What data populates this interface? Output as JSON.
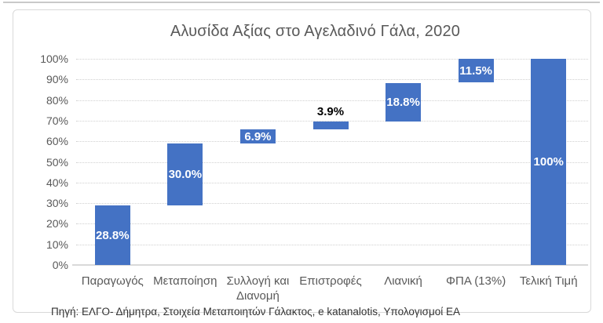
{
  "chart_data": {
    "type": "bar",
    "subtype": "waterfall",
    "title": "Αλυσίδα Αξίας στο Αγελαδινό Γάλα, 2020",
    "source_note": "Πηγή: ΕΛΓΟ- Δήμητρα, Στοιχεία Μεταποιητών Γάλακτος, e katanalotis, Υπολογισμοί ΕΑ",
    "categories": [
      "Παραγωγός",
      "Μεταποίηση",
      "Συλλογή και Διανομή",
      "Επιστροφές",
      "Λιανική",
      "ΦΠΑ (13%)",
      "Τελική Τιμή"
    ],
    "values": [
      28.8,
      30.0,
      6.9,
      3.9,
      18.8,
      11.5,
      100.0
    ],
    "labels": [
      "28.8%",
      "30.0%",
      "6.9%",
      "3.9%",
      "18.8%",
      "11.5%",
      "100%"
    ],
    "segments": [
      {
        "category": "Παραγωγός",
        "start": 0,
        "end": 28.8,
        "label": "28.8%",
        "label_position": "inside"
      },
      {
        "category": "Μεταποίηση",
        "start": 28.8,
        "end": 58.8,
        "label": "30.0%",
        "label_position": "inside"
      },
      {
        "category": "Συλλογή και Διανομή",
        "start": 58.8,
        "end": 65.7,
        "label": "6.9%",
        "label_position": "inside"
      },
      {
        "category": "Επιστροφές",
        "start": 65.7,
        "end": 69.6,
        "label": "3.9%",
        "label_position": "above"
      },
      {
        "category": "Λιανική",
        "start": 69.6,
        "end": 88.4,
        "label": "18.8%",
        "label_position": "inside"
      },
      {
        "category": "ΦΠΑ (13%)",
        "start": 88.4,
        "end": 99.9,
        "label": "11.5%",
        "label_position": "inside"
      },
      {
        "category": "Τελική Τιμή",
        "start": 0,
        "end": 100.0,
        "label": "100%",
        "label_position": "inside"
      }
    ],
    "xlabel": "",
    "ylabel": "",
    "ylim": [
      0,
      100
    ],
    "ytick_step": 10,
    "ytick_labels": [
      "0%",
      "10%",
      "20%",
      "30%",
      "40%",
      "50%",
      "60%",
      "70%",
      "80%",
      "90%",
      "100%"
    ],
    "grid": "horizontal-dotted",
    "legend": "none",
    "colors": {
      "bar": "#4472C4",
      "grid": "#D0D0D0",
      "axis_line": "#D9D9D9",
      "axis_text": "#595959",
      "title_text": "#595959",
      "data_label_light": "#FFFFFF",
      "data_label_dark": "#000000",
      "card_border": "#D9D9D9"
    }
  }
}
